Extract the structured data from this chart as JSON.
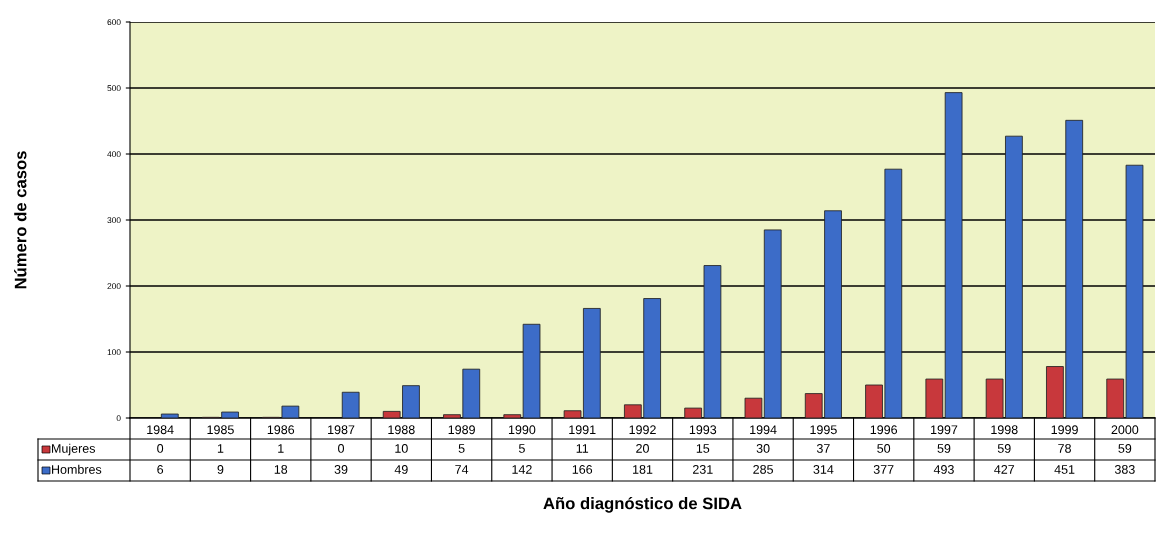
{
  "chart_data": {
    "type": "bar",
    "xlabel": "Año diagnóstico de SIDA",
    "ylabel": "Número de casos",
    "categories": [
      "1984",
      "1985",
      "1986",
      "1987",
      "1988",
      "1989",
      "1990",
      "1991",
      "1992",
      "1993",
      "1994",
      "1995",
      "1996",
      "1997",
      "1998",
      "1999",
      "2000"
    ],
    "series": [
      {
        "name": "Mujeres",
        "color": "#c8383c",
        "values": [
          0,
          1,
          1,
          0,
          10,
          5,
          5,
          11,
          20,
          15,
          30,
          37,
          50,
          59,
          59,
          78,
          59
        ]
      },
      {
        "name": "Hombres",
        "color": "#3c6cc8",
        "values": [
          6,
          9,
          18,
          39,
          49,
          74,
          142,
          166,
          181,
          231,
          285,
          314,
          377,
          493,
          427,
          451,
          383
        ]
      }
    ],
    "ylim": [
      0,
      600
    ],
    "yticks": [
      0,
      100,
      200,
      300,
      400,
      500,
      600
    ],
    "grid": "y",
    "data_labels": true,
    "legend": "bottom left"
  }
}
